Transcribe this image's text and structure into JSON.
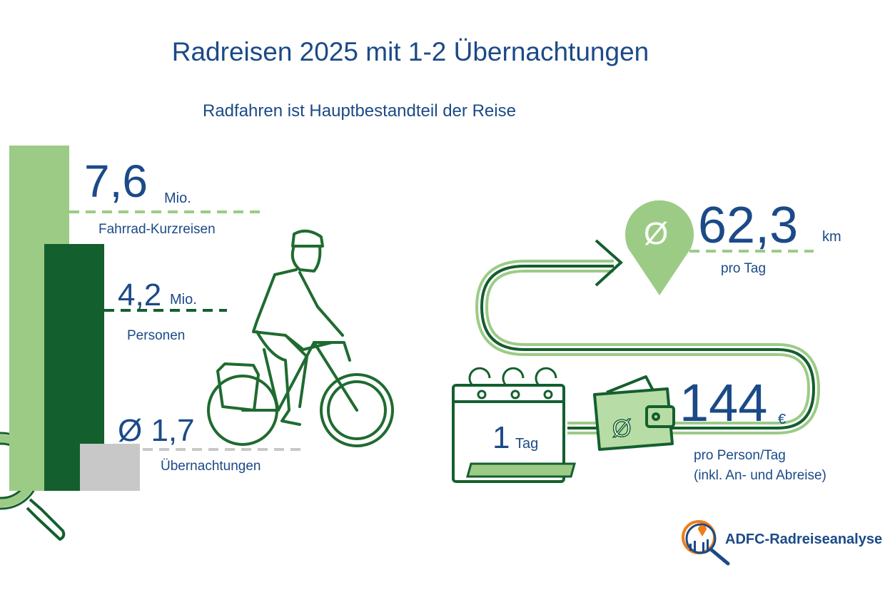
{
  "title": "Radreisen 2025 mit 1-2 Übernachtungen",
  "subtitle": "Radfahren ist Hauptbestandteil der Reise",
  "colors": {
    "text_blue": "#1b4a87",
    "light_green": "#9ccb86",
    "dark_green": "#145f2e",
    "gray": "#c8c8c8",
    "logo_orange": "#ee7d1a"
  },
  "stats": {
    "trips": {
      "value": "7,6",
      "unit": "Mio.",
      "label": "Fahrrad-Kurzreisen"
    },
    "persons": {
      "value": "4,2",
      "unit": "Mio.",
      "label": "Personen"
    },
    "nights": {
      "value": "Ø 1,7",
      "label": "Übernachtungen"
    },
    "distance": {
      "symbol": "Ø",
      "value": "62,3",
      "unit": "km",
      "label": "pro Tag"
    },
    "days": {
      "value": "1",
      "unit": "Tag"
    },
    "spend": {
      "symbol": "Ø",
      "value": "144",
      "unit": "€",
      "label_line1": "pro Person/Tag",
      "label_line2": "(inkl. An- und Abreise)"
    }
  },
  "icons": [
    "magnifier-icon",
    "cyclist-illustration",
    "route-arrow-icon",
    "map-pin-icon",
    "calendar-icon",
    "wallet-icon"
  ],
  "logo": {
    "text": "ADFC-Radreiseanalyse"
  }
}
